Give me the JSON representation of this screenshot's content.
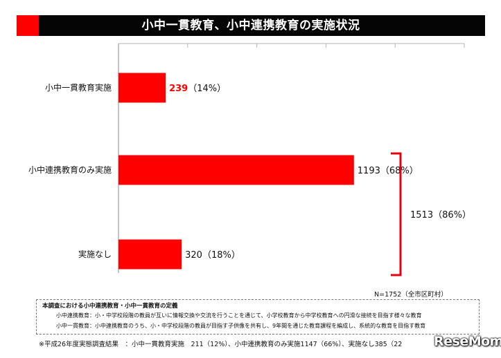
{
  "title": "小中一貫教育、小中連携教育の実施状況",
  "colors": {
    "accent": "#ff0000",
    "title_bg": "#050505",
    "bar": "#ff0000",
    "bracket": "#e3000f"
  },
  "chart_data": {
    "type": "bar",
    "orientation": "horizontal",
    "categories": [
      "小中一貫教育実施",
      "小中連携教育のみ実施",
      "実施なし"
    ],
    "values": [
      239,
      1193,
      320
    ],
    "percent_labels": [
      "（14%）",
      "（68%）",
      "（18%）"
    ],
    "highlight_value_index": 0,
    "xlim": [
      0,
      1752
    ],
    "grid": false,
    "tick_marks_top": 5,
    "bracket": {
      "covers_categories": [
        "小中連携教育のみ実施",
        "実施なし"
      ],
      "value": 1513,
      "percent_label": "（86%）"
    },
    "sample_note": "N=1752（全市区町村）"
  },
  "definitions": {
    "title": "本調査における小中連携教育・小中一貫教育の定義",
    "lines": [
      "小中連携教育：小・中学校段階の教員が互いに情報交換や交流を行うことを通じて、小学校教育から中学校教育への円滑な接続を目指す様々な教育",
      "小中一貫教育：小中連携教育のうち、小・中学校段階の教員が目指す子供像を共有し、9年間を通じた教育課程を編成し、系統的な教育を目指す教育"
    ]
  },
  "footnote": "※平成26年度実態調査結果　：小中一貫教育実施　211（12%）、小中連携教育のみ実施1147（66%）、実施なし385（22",
  "watermark": "ReseMom"
}
